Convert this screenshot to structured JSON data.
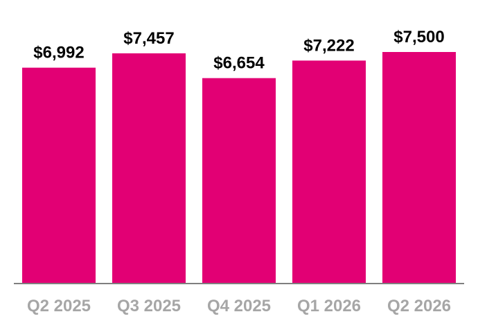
{
  "chart_data": {
    "type": "bar",
    "categories": [
      "Q2 2025",
      "Q3 2025",
      "Q4 2025",
      "Q1 2026",
      "Q2 2026"
    ],
    "values": [
      6992,
      7457,
      6654,
      7222,
      7500
    ],
    "data_labels": [
      "$6,992",
      "$7,457",
      "$6,654",
      "$7,222",
      "$7,500"
    ],
    "title": "",
    "xlabel": "",
    "ylabel": "",
    "ylim": [
      0,
      7500
    ],
    "grid": false,
    "legend": "none",
    "colors": {
      "bar": "#E20074",
      "data_label": "#000000",
      "tick_label": "#A6A6A6",
      "axis": "#7F7F7F"
    }
  }
}
